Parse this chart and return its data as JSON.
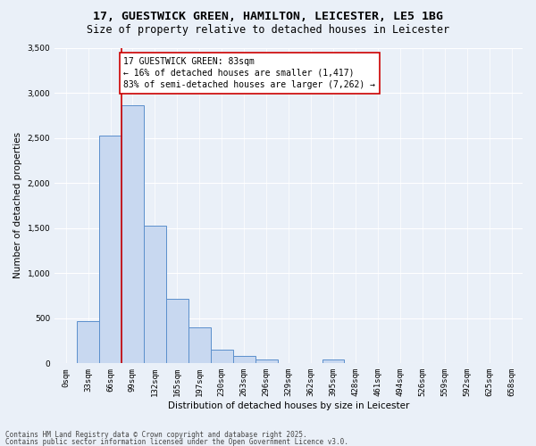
{
  "title_line1": "17, GUESTWICK GREEN, HAMILTON, LEICESTER, LE5 1BG",
  "title_line2": "Size of property relative to detached houses in Leicester",
  "xlabel": "Distribution of detached houses by size in Leicester",
  "ylabel": "Number of detached properties",
  "bar_labels": [
    "0sqm",
    "33sqm",
    "66sqm",
    "99sqm",
    "132sqm",
    "165sqm",
    "197sqm",
    "230sqm",
    "263sqm",
    "296sqm",
    "329sqm",
    "362sqm",
    "395sqm",
    "428sqm",
    "461sqm",
    "494sqm",
    "526sqm",
    "559sqm",
    "592sqm",
    "625sqm",
    "658sqm"
  ],
  "bar_values": [
    0,
    470,
    2530,
    2860,
    1530,
    720,
    400,
    155,
    80,
    40,
    0,
    0,
    45,
    0,
    0,
    0,
    0,
    0,
    0,
    0,
    0
  ],
  "bar_color": "#c8d8f0",
  "bar_edge_color": "#5b8fcc",
  "property_line_x": 2.5,
  "property_line_color": "#cc0000",
  "annotation_text": "17 GUESTWICK GREEN: 83sqm\n← 16% of detached houses are smaller (1,417)\n83% of semi-detached houses are larger (7,262) →",
  "annotation_box_color": "#ffffff",
  "annotation_box_edge": "#cc0000",
  "ylim": [
    0,
    3500
  ],
  "yticks": [
    0,
    500,
    1000,
    1500,
    2000,
    2500,
    3000,
    3500
  ],
  "bg_color": "#eaf0f8",
  "footer_line1": "Contains HM Land Registry data © Crown copyright and database right 2025.",
  "footer_line2": "Contains public sector information licensed under the Open Government Licence v3.0.",
  "grid_color": "#ffffff",
  "title_fontsize": 9.5,
  "subtitle_fontsize": 8.5,
  "axis_label_fontsize": 7.5,
  "tick_fontsize": 6.5,
  "annotation_fontsize": 7,
  "footer_fontsize": 5.5
}
